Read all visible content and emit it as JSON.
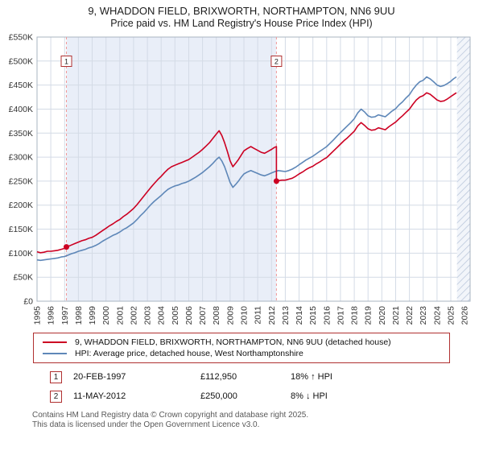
{
  "chart_data": {
    "type": "line",
    "title": "9, WHADDON FIELD, BRIXWORTH, NORTHAMPTON, NN6 9UU",
    "subtitle": "Price paid vs. HM Land Registry's House Price Index (HPI)",
    "legend_position": "bottom",
    "grid": true,
    "x_axis": {
      "min": 1995,
      "max": 2026.4,
      "ticks": [
        1995,
        1996,
        1997,
        1998,
        1999,
        2000,
        2001,
        2002,
        2003,
        2004,
        2005,
        2006,
        2007,
        2008,
        2009,
        2010,
        2011,
        2012,
        2013,
        2014,
        2015,
        2016,
        2017,
        2018,
        2019,
        2020,
        2021,
        2022,
        2023,
        2024,
        2025,
        2026
      ]
    },
    "y_axis": {
      "min": 0,
      "max": 550,
      "unit": "thousands_gbp",
      "ticks": [
        {
          "v": 0,
          "label": "£0"
        },
        {
          "v": 50,
          "label": "£50K"
        },
        {
          "v": 100,
          "label": "£100K"
        },
        {
          "v": 150,
          "label": "£150K"
        },
        {
          "v": 200,
          "label": "£200K"
        },
        {
          "v": 250,
          "label": "£250K"
        },
        {
          "v": 300,
          "label": "£300K"
        },
        {
          "v": 350,
          "label": "£350K"
        },
        {
          "v": 400,
          "label": "£400K"
        },
        {
          "v": 450,
          "label": "£450K"
        },
        {
          "v": 500,
          "label": "£500K"
        },
        {
          "v": 550,
          "label": "£550K"
        }
      ]
    },
    "colors": {
      "band": "#e9eef8",
      "grid": "#d4dbe6",
      "dashed": "#f09898",
      "hatch": "#b9c6da",
      "hatch_bg": "#f2f5fa",
      "frame": "#a9b4c2",
      "box_border": "#b03030"
    },
    "shaded_region": {
      "from": 1997.13,
      "to": 2012.36
    },
    "hatched_region": {
      "from": 2025.45,
      "to": 2026.4
    },
    "sale_markers": [
      {
        "label": "1",
        "x": 1997.13,
        "y": 112.95
      },
      {
        "label": "2",
        "x": 2012.36,
        "y": 250
      }
    ],
    "series": [
      {
        "name": "9, WHADDON FIELD, BRIXWORTH, NORTHAMPTON, NN6 9UU (detached house)",
        "color": "#cc0022",
        "points": [
          [
            1995,
            103
          ],
          [
            1995.25,
            101
          ],
          [
            1995.5,
            102
          ],
          [
            1995.75,
            104
          ],
          [
            1996,
            104
          ],
          [
            1996.25,
            105
          ],
          [
            1996.5,
            106
          ],
          [
            1996.75,
            108
          ],
          [
            1997,
            110
          ],
          [
            1997.13,
            113
          ],
          [
            1997.25,
            114
          ],
          [
            1997.5,
            117
          ],
          [
            1997.75,
            120
          ],
          [
            1998,
            123
          ],
          [
            1998.25,
            126
          ],
          [
            1998.5,
            128
          ],
          [
            1998.75,
            131
          ],
          [
            1999,
            133
          ],
          [
            1999.25,
            137
          ],
          [
            1999.5,
            142
          ],
          [
            1999.75,
            147
          ],
          [
            2000,
            152
          ],
          [
            2000.25,
            157
          ],
          [
            2000.5,
            161
          ],
          [
            2000.75,
            166
          ],
          [
            2001,
            170
          ],
          [
            2001.25,
            176
          ],
          [
            2001.5,
            181
          ],
          [
            2001.75,
            187
          ],
          [
            2002,
            193
          ],
          [
            2002.25,
            201
          ],
          [
            2002.5,
            210
          ],
          [
            2002.75,
            219
          ],
          [
            2003,
            228
          ],
          [
            2003.25,
            237
          ],
          [
            2003.5,
            245
          ],
          [
            2003.75,
            253
          ],
          [
            2004,
            260
          ],
          [
            2004.25,
            268
          ],
          [
            2004.5,
            275
          ],
          [
            2004.75,
            280
          ],
          [
            2005,
            283
          ],
          [
            2005.25,
            286
          ],
          [
            2005.5,
            289
          ],
          [
            2005.75,
            292
          ],
          [
            2006,
            295
          ],
          [
            2006.25,
            300
          ],
          [
            2006.5,
            305
          ],
          [
            2006.75,
            310
          ],
          [
            2007,
            316
          ],
          [
            2007.25,
            323
          ],
          [
            2007.5,
            330
          ],
          [
            2007.75,
            339
          ],
          [
            2008,
            348
          ],
          [
            2008.2,
            355
          ],
          [
            2008.4,
            345
          ],
          [
            2008.6,
            330
          ],
          [
            2008.8,
            312
          ],
          [
            2009,
            292
          ],
          [
            2009.2,
            280
          ],
          [
            2009.4,
            287
          ],
          [
            2009.6,
            295
          ],
          [
            2009.8,
            304
          ],
          [
            2010,
            313
          ],
          [
            2010.25,
            318
          ],
          [
            2010.5,
            322
          ],
          [
            2010.75,
            318
          ],
          [
            2011,
            314
          ],
          [
            2011.25,
            310
          ],
          [
            2011.5,
            308
          ],
          [
            2011.75,
            312
          ],
          [
            2012,
            316
          ],
          [
            2012.2,
            320
          ],
          [
            2012.36,
            322
          ],
          [
            2012.36,
            250
          ],
          [
            2012.5,
            251
          ],
          [
            2012.75,
            252
          ],
          [
            2013,
            252
          ],
          [
            2013.25,
            254
          ],
          [
            2013.5,
            256
          ],
          [
            2013.75,
            260
          ],
          [
            2014,
            265
          ],
          [
            2014.25,
            269
          ],
          [
            2014.5,
            274
          ],
          [
            2014.75,
            278
          ],
          [
            2015,
            281
          ],
          [
            2015.25,
            286
          ],
          [
            2015.5,
            290
          ],
          [
            2015.75,
            295
          ],
          [
            2016,
            299
          ],
          [
            2016.25,
            306
          ],
          [
            2016.5,
            313
          ],
          [
            2016.75,
            320
          ],
          [
            2017,
            327
          ],
          [
            2017.25,
            334
          ],
          [
            2017.5,
            340
          ],
          [
            2017.75,
            347
          ],
          [
            2018,
            354
          ],
          [
            2018.25,
            365
          ],
          [
            2018.5,
            372
          ],
          [
            2018.75,
            366
          ],
          [
            2019,
            359
          ],
          [
            2019.25,
            356
          ],
          [
            2019.5,
            357
          ],
          [
            2019.75,
            361
          ],
          [
            2020,
            359
          ],
          [
            2020.25,
            357
          ],
          [
            2020.5,
            363
          ],
          [
            2020.75,
            368
          ],
          [
            2021,
            373
          ],
          [
            2021.25,
            380
          ],
          [
            2021.5,
            386
          ],
          [
            2021.75,
            393
          ],
          [
            2022,
            400
          ],
          [
            2022.25,
            410
          ],
          [
            2022.5,
            419
          ],
          [
            2022.75,
            425
          ],
          [
            2023,
            428
          ],
          [
            2023.25,
            434
          ],
          [
            2023.5,
            431
          ],
          [
            2023.75,
            425
          ],
          [
            2024,
            419
          ],
          [
            2024.25,
            416
          ],
          [
            2024.5,
            417
          ],
          [
            2024.75,
            421
          ],
          [
            2025,
            426
          ],
          [
            2025.2,
            430
          ],
          [
            2025.4,
            434
          ]
        ]
      },
      {
        "name": "HPI: Average price, detached house, West Northamptonshire",
        "color": "#5e87b8",
        "points": [
          [
            1995,
            86
          ],
          [
            1995.25,
            85
          ],
          [
            1995.5,
            86
          ],
          [
            1995.75,
            87
          ],
          [
            1996,
            88
          ],
          [
            1996.25,
            89
          ],
          [
            1996.5,
            90
          ],
          [
            1996.75,
            92
          ],
          [
            1997,
            93
          ],
          [
            1997.25,
            96
          ],
          [
            1997.5,
            99
          ],
          [
            1997.75,
            101
          ],
          [
            1998,
            104
          ],
          [
            1998.25,
            106
          ],
          [
            1998.5,
            108
          ],
          [
            1998.75,
            111
          ],
          [
            1999,
            113
          ],
          [
            1999.25,
            116
          ],
          [
            1999.5,
            120
          ],
          [
            1999.75,
            125
          ],
          [
            2000,
            129
          ],
          [
            2000.25,
            133
          ],
          [
            2000.5,
            137
          ],
          [
            2000.75,
            140
          ],
          [
            2001,
            144
          ],
          [
            2001.25,
            149
          ],
          [
            2001.5,
            153
          ],
          [
            2001.75,
            158
          ],
          [
            2002,
            163
          ],
          [
            2002.25,
            170
          ],
          [
            2002.5,
            178
          ],
          [
            2002.75,
            185
          ],
          [
            2003,
            193
          ],
          [
            2003.25,
            201
          ],
          [
            2003.5,
            208
          ],
          [
            2003.75,
            214
          ],
          [
            2004,
            220
          ],
          [
            2004.25,
            227
          ],
          [
            2004.5,
            233
          ],
          [
            2004.75,
            237
          ],
          [
            2005,
            240
          ],
          [
            2005.25,
            242
          ],
          [
            2005.5,
            245
          ],
          [
            2005.75,
            247
          ],
          [
            2006,
            250
          ],
          [
            2006.25,
            254
          ],
          [
            2006.5,
            258
          ],
          [
            2006.75,
            263
          ],
          [
            2007,
            268
          ],
          [
            2007.25,
            274
          ],
          [
            2007.5,
            280
          ],
          [
            2007.75,
            287
          ],
          [
            2008,
            295
          ],
          [
            2008.2,
            300
          ],
          [
            2008.4,
            292
          ],
          [
            2008.6,
            280
          ],
          [
            2008.8,
            264
          ],
          [
            2009,
            247
          ],
          [
            2009.2,
            237
          ],
          [
            2009.4,
            243
          ],
          [
            2009.6,
            250
          ],
          [
            2009.8,
            258
          ],
          [
            2010,
            265
          ],
          [
            2010.25,
            269
          ],
          [
            2010.5,
            272
          ],
          [
            2010.75,
            269
          ],
          [
            2011,
            266
          ],
          [
            2011.25,
            263
          ],
          [
            2011.5,
            261
          ],
          [
            2011.75,
            264
          ],
          [
            2012,
            267
          ],
          [
            2012.25,
            270
          ],
          [
            2012.5,
            272
          ],
          [
            2012.75,
            271
          ],
          [
            2013,
            270
          ],
          [
            2013.25,
            272
          ],
          [
            2013.5,
            275
          ],
          [
            2013.75,
            279
          ],
          [
            2014,
            284
          ],
          [
            2014.25,
            289
          ],
          [
            2014.5,
            294
          ],
          [
            2014.75,
            298
          ],
          [
            2015,
            302
          ],
          [
            2015.25,
            307
          ],
          [
            2015.5,
            312
          ],
          [
            2015.75,
            317
          ],
          [
            2016,
            322
          ],
          [
            2016.25,
            329
          ],
          [
            2016.5,
            336
          ],
          [
            2016.75,
            344
          ],
          [
            2017,
            351
          ],
          [
            2017.25,
            358
          ],
          [
            2017.5,
            365
          ],
          [
            2017.75,
            372
          ],
          [
            2018,
            380
          ],
          [
            2018.25,
            392
          ],
          [
            2018.5,
            400
          ],
          [
            2018.75,
            394
          ],
          [
            2019,
            386
          ],
          [
            2019.25,
            383
          ],
          [
            2019.5,
            384
          ],
          [
            2019.75,
            388
          ],
          [
            2020,
            386
          ],
          [
            2020.25,
            384
          ],
          [
            2020.5,
            390
          ],
          [
            2020.75,
            396
          ],
          [
            2021,
            401
          ],
          [
            2021.25,
            409
          ],
          [
            2021.5,
            415
          ],
          [
            2021.75,
            423
          ],
          [
            2022,
            430
          ],
          [
            2022.25,
            441
          ],
          [
            2022.5,
            450
          ],
          [
            2022.75,
            457
          ],
          [
            2023,
            460
          ],
          [
            2023.25,
            467
          ],
          [
            2023.5,
            463
          ],
          [
            2023.75,
            457
          ],
          [
            2024,
            450
          ],
          [
            2024.25,
            447
          ],
          [
            2024.5,
            449
          ],
          [
            2024.75,
            453
          ],
          [
            2025,
            458
          ],
          [
            2025.2,
            463
          ],
          [
            2025.4,
            467
          ]
        ]
      }
    ]
  },
  "transactions": [
    {
      "num": "1",
      "date": "20-FEB-1997",
      "price": "£112,950",
      "hpi": "18% ↑ HPI"
    },
    {
      "num": "2",
      "date": "11-MAY-2012",
      "price": "£250,000",
      "hpi": "8% ↓ HPI"
    }
  ],
  "footer": {
    "line1": "Contains HM Land Registry data © Crown copyright and database right 2025.",
    "line2": "This data is licensed under the Open Government Licence v3.0."
  }
}
